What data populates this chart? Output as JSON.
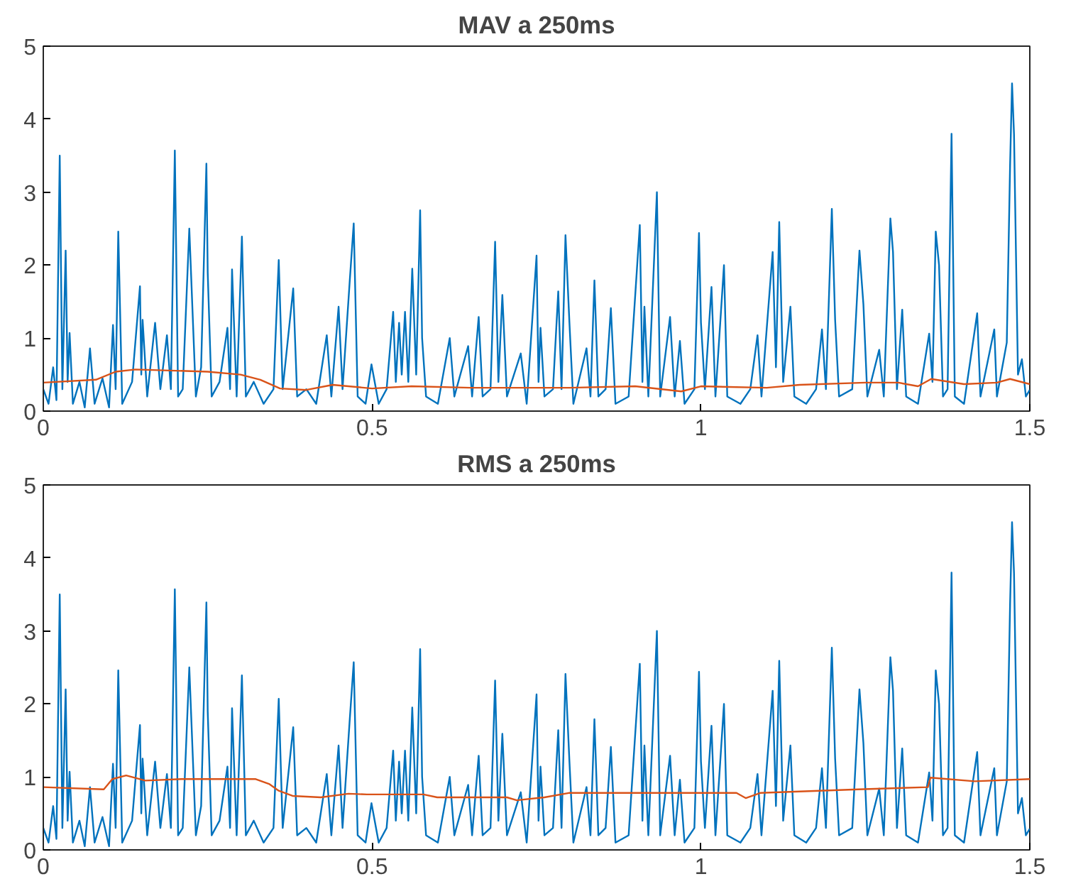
{
  "chart_data": [
    {
      "type": "line",
      "title": "MAV a 250ms",
      "xlim": [
        0,
        1.5
      ],
      "ylim": [
        0,
        5
      ],
      "xticks": [
        0,
        0.5,
        1,
        1.5
      ],
      "yticks": [
        0,
        1,
        2,
        3,
        4,
        5
      ],
      "series": [
        {
          "color": "#0072bd",
          "x": [
            0,
            0.008,
            0.015,
            0.02,
            0.025,
            0.029,
            0.034,
            0.037,
            0.04,
            0.045,
            0.055,
            0.063,
            0.071,
            0.078,
            0.09,
            0.1,
            0.106,
            0.11,
            0.114,
            0.12,
            0.135,
            0.147,
            0.149,
            0.151,
            0.158,
            0.17,
            0.178,
            0.188,
            0.194,
            0.2,
            0.205,
            0.212,
            0.222,
            0.232,
            0.24,
            0.248,
            0.25,
            0.256,
            0.268,
            0.28,
            0.284,
            0.287,
            0.294,
            0.302,
            0.308,
            0.32,
            0.335,
            0.35,
            0.356,
            0.358,
            0.364,
            0.38,
            0.386,
            0.4,
            0.415,
            0.431,
            0.438,
            0.449,
            0.455,
            0.466,
            0.472,
            0.478,
            0.49,
            0.499,
            0.51,
            0.522,
            0.532,
            0.536,
            0.541,
            0.545,
            0.55,
            0.555,
            0.561,
            0.567,
            0.573,
            0.576,
            0.582,
            0.6,
            0.618,
            0.625,
            0.646,
            0.652,
            0.662,
            0.668,
            0.68,
            0.687,
            0.692,
            0.698,
            0.705,
            0.726,
            0.735,
            0.75,
            0.753,
            0.756,
            0.762,
            0.775,
            0.783,
            0.788,
            0.794,
            0.8,
            0.806,
            0.826,
            0.832,
            0.838,
            0.844,
            0.855,
            0.863,
            0.87,
            0.89,
            0.907,
            0.911,
            0.914,
            0.92,
            0.933,
            0.938,
            0.953,
            0.96,
            0.968,
            0.975,
            0.99,
            0.997,
            1.0,
            1.006,
            1.016,
            1.022,
            1.035,
            1.04,
            1.06,
            1.075,
            1.086,
            1.092,
            1.109,
            1.114,
            1.119,
            1.125,
            1.136,
            1.142,
            1.16,
            1.175,
            1.184,
            1.19,
            1.199,
            1.204,
            1.21,
            1.23,
            1.241,
            1.247,
            1.253,
            1.271,
            1.278,
            1.288,
            1.292,
            1.298,
            1.306,
            1.312,
            1.33,
            1.347,
            1.352,
            1.357,
            1.362,
            1.368,
            1.375,
            1.381,
            1.386,
            1.4,
            1.42,
            1.425,
            1.446,
            1.45,
            1.465,
            1.47,
            1.473,
            1.476,
            1.482,
            1.488,
            1.494,
            1.5
          ],
          "values": [
            0.3,
            0.1,
            0.6,
            0.15,
            3.5,
            0.3,
            2.2,
            0.4,
            1.07,
            0.1,
            0.4,
            0.05,
            0.86,
            0.1,
            0.45,
            0.05,
            1.18,
            0.3,
            2.46,
            0.1,
            0.4,
            1.71,
            0.5,
            1.25,
            0.2,
            1.21,
            0.3,
            1.04,
            0.3,
            3.57,
            0.2,
            0.3,
            2.5,
            0.2,
            0.6,
            3.39,
            1.9,
            0.2,
            0.4,
            1.14,
            0.3,
            1.94,
            0.2,
            2.39,
            0.2,
            0.4,
            0.1,
            0.3,
            1.64,
            2.07,
            0.3,
            1.68,
            0.2,
            0.3,
            0.1,
            1.04,
            0.2,
            1.43,
            0.3,
            1.79,
            2.57,
            0.2,
            0.1,
            0.64,
            0.1,
            0.3,
            1.36,
            0.4,
            1.21,
            0.5,
            1.36,
            0.4,
            1.95,
            0.5,
            2.75,
            1.0,
            0.2,
            0.1,
            1.0,
            0.2,
            0.89,
            0.2,
            1.29,
            0.2,
            0.3,
            2.32,
            0.4,
            1.59,
            0.2,
            0.79,
            0.1,
            2.13,
            0.4,
            1.14,
            0.2,
            0.3,
            1.64,
            0.3,
            2.41,
            1.21,
            0.1,
            0.86,
            0.2,
            1.79,
            0.2,
            0.3,
            1.41,
            0.1,
            0.2,
            2.55,
            0.4,
            1.43,
            0.2,
            3.0,
            0.2,
            1.29,
            0.2,
            0.96,
            0.1,
            0.3,
            2.44,
            1.21,
            0.3,
            1.7,
            0.2,
            2.0,
            0.2,
            0.1,
            0.3,
            1.04,
            0.2,
            2.18,
            0.6,
            2.59,
            0.4,
            1.43,
            0.2,
            0.1,
            0.3,
            1.12,
            0.3,
            2.77,
            1.25,
            0.2,
            0.3,
            2.2,
            1.46,
            0.2,
            0.84,
            0.2,
            2.64,
            2.18,
            0.3,
            1.39,
            0.2,
            0.1,
            1.06,
            0.4,
            2.46,
            2.0,
            0.2,
            0.3,
            3.8,
            0.2,
            0.1,
            1.34,
            0.2,
            1.12,
            0.2,
            0.94,
            3.36,
            4.49,
            3.79,
            0.5,
            0.71,
            0.2,
            0.29
          ]
        },
        {
          "color": "#d95319",
          "x": [
            0,
            0.08,
            0.11,
            0.14,
            0.25,
            0.3,
            0.33,
            0.36,
            0.4,
            0.44,
            0.5,
            0.56,
            0.65,
            0.8,
            0.9,
            0.97,
            1.0,
            1.1,
            1.15,
            1.25,
            1.3,
            1.33,
            1.35,
            1.4,
            1.45,
            1.47,
            1.5
          ],
          "values": [
            0.39,
            0.43,
            0.54,
            0.57,
            0.54,
            0.5,
            0.43,
            0.31,
            0.29,
            0.36,
            0.31,
            0.34,
            0.32,
            0.32,
            0.34,
            0.27,
            0.34,
            0.32,
            0.36,
            0.39,
            0.39,
            0.34,
            0.44,
            0.37,
            0.39,
            0.44,
            0.37
          ]
        }
      ]
    },
    {
      "type": "line",
      "title": "RMS a 250ms",
      "xlim": [
        0,
        1.5
      ],
      "ylim": [
        0,
        5
      ],
      "xticks": [
        0,
        0.5,
        1,
        1.5
      ],
      "yticks": [
        0,
        1,
        2,
        3,
        4,
        5
      ],
      "series": [
        {
          "color": "#0072bd",
          "x": [
            0,
            0.008,
            0.015,
            0.02,
            0.025,
            0.029,
            0.034,
            0.037,
            0.04,
            0.045,
            0.055,
            0.063,
            0.071,
            0.078,
            0.09,
            0.1,
            0.106,
            0.11,
            0.114,
            0.12,
            0.135,
            0.147,
            0.149,
            0.151,
            0.158,
            0.17,
            0.178,
            0.188,
            0.194,
            0.2,
            0.205,
            0.212,
            0.222,
            0.232,
            0.24,
            0.248,
            0.25,
            0.256,
            0.268,
            0.28,
            0.284,
            0.287,
            0.294,
            0.302,
            0.308,
            0.32,
            0.335,
            0.35,
            0.356,
            0.358,
            0.364,
            0.38,
            0.386,
            0.4,
            0.415,
            0.431,
            0.438,
            0.449,
            0.455,
            0.466,
            0.472,
            0.478,
            0.49,
            0.499,
            0.51,
            0.522,
            0.532,
            0.536,
            0.541,
            0.545,
            0.55,
            0.555,
            0.561,
            0.567,
            0.573,
            0.576,
            0.582,
            0.6,
            0.618,
            0.625,
            0.646,
            0.652,
            0.662,
            0.668,
            0.68,
            0.687,
            0.692,
            0.698,
            0.705,
            0.726,
            0.735,
            0.75,
            0.753,
            0.756,
            0.762,
            0.775,
            0.783,
            0.788,
            0.794,
            0.8,
            0.806,
            0.826,
            0.832,
            0.838,
            0.844,
            0.855,
            0.863,
            0.87,
            0.89,
            0.907,
            0.911,
            0.914,
            0.92,
            0.933,
            0.938,
            0.953,
            0.96,
            0.968,
            0.975,
            0.99,
            0.997,
            1.0,
            1.006,
            1.016,
            1.022,
            1.035,
            1.04,
            1.06,
            1.075,
            1.086,
            1.092,
            1.109,
            1.114,
            1.119,
            1.125,
            1.136,
            1.142,
            1.16,
            1.175,
            1.184,
            1.19,
            1.199,
            1.204,
            1.21,
            1.23,
            1.241,
            1.247,
            1.253,
            1.271,
            1.278,
            1.288,
            1.292,
            1.298,
            1.306,
            1.312,
            1.33,
            1.347,
            1.352,
            1.357,
            1.362,
            1.368,
            1.375,
            1.381,
            1.386,
            1.4,
            1.42,
            1.425,
            1.446,
            1.45,
            1.465,
            1.47,
            1.473,
            1.476,
            1.482,
            1.488,
            1.494,
            1.5
          ],
          "values": [
            0.3,
            0.1,
            0.6,
            0.15,
            3.5,
            0.3,
            2.2,
            0.4,
            1.07,
            0.1,
            0.4,
            0.05,
            0.86,
            0.1,
            0.45,
            0.05,
            1.18,
            0.3,
            2.46,
            0.1,
            0.4,
            1.71,
            0.5,
            1.25,
            0.2,
            1.21,
            0.3,
            1.04,
            0.3,
            3.57,
            0.2,
            0.3,
            2.5,
            0.2,
            0.6,
            3.39,
            1.9,
            0.2,
            0.4,
            1.14,
            0.3,
            1.94,
            0.2,
            2.39,
            0.2,
            0.4,
            0.1,
            0.3,
            1.64,
            2.07,
            0.3,
            1.68,
            0.2,
            0.3,
            0.1,
            1.04,
            0.2,
            1.43,
            0.3,
            1.79,
            2.57,
            0.2,
            0.1,
            0.64,
            0.1,
            0.3,
            1.36,
            0.4,
            1.21,
            0.5,
            1.36,
            0.4,
            1.95,
            0.5,
            2.75,
            1.0,
            0.2,
            0.1,
            1.0,
            0.2,
            0.89,
            0.2,
            1.29,
            0.2,
            0.3,
            2.32,
            0.4,
            1.59,
            0.2,
            0.79,
            0.1,
            2.13,
            0.4,
            1.14,
            0.2,
            0.3,
            1.64,
            0.3,
            2.41,
            1.21,
            0.1,
            0.86,
            0.2,
            1.79,
            0.2,
            0.3,
            1.41,
            0.1,
            0.2,
            2.55,
            0.4,
            1.43,
            0.2,
            3.0,
            0.2,
            1.29,
            0.2,
            0.96,
            0.1,
            0.3,
            2.44,
            1.21,
            0.3,
            1.7,
            0.2,
            2.0,
            0.2,
            0.1,
            0.3,
            1.04,
            0.2,
            2.18,
            0.6,
            2.59,
            0.4,
            1.43,
            0.2,
            0.1,
            0.3,
            1.12,
            0.3,
            2.77,
            1.25,
            0.2,
            0.3,
            2.2,
            1.46,
            0.2,
            0.84,
            0.2,
            2.64,
            2.18,
            0.3,
            1.39,
            0.2,
            0.1,
            1.06,
            0.4,
            2.46,
            2.0,
            0.2,
            0.3,
            3.8,
            0.2,
            0.1,
            1.34,
            0.2,
            1.12,
            0.2,
            0.94,
            3.36,
            4.49,
            3.79,
            0.5,
            0.71,
            0.2,
            0.29
          ]
        },
        {
          "color": "#d95319",
          "x": [
            0,
            0.092,
            0.105,
            0.126,
            0.155,
            0.21,
            0.323,
            0.344,
            0.358,
            0.379,
            0.422,
            0.464,
            0.492,
            0.578,
            0.599,
            0.705,
            0.72,
            0.762,
            0.799,
            0.919,
            1.054,
            1.068,
            1.09,
            1.239,
            1.345,
            1.349,
            1.416,
            1.5
          ],
          "values": [
            0.86,
            0.83,
            0.97,
            1.02,
            0.95,
            0.97,
            0.97,
            0.9,
            0.81,
            0.74,
            0.72,
            0.77,
            0.76,
            0.76,
            0.72,
            0.72,
            0.68,
            0.72,
            0.78,
            0.78,
            0.78,
            0.71,
            0.78,
            0.83,
            0.86,
            0.99,
            0.94,
            0.97
          ]
        }
      ]
    }
  ]
}
